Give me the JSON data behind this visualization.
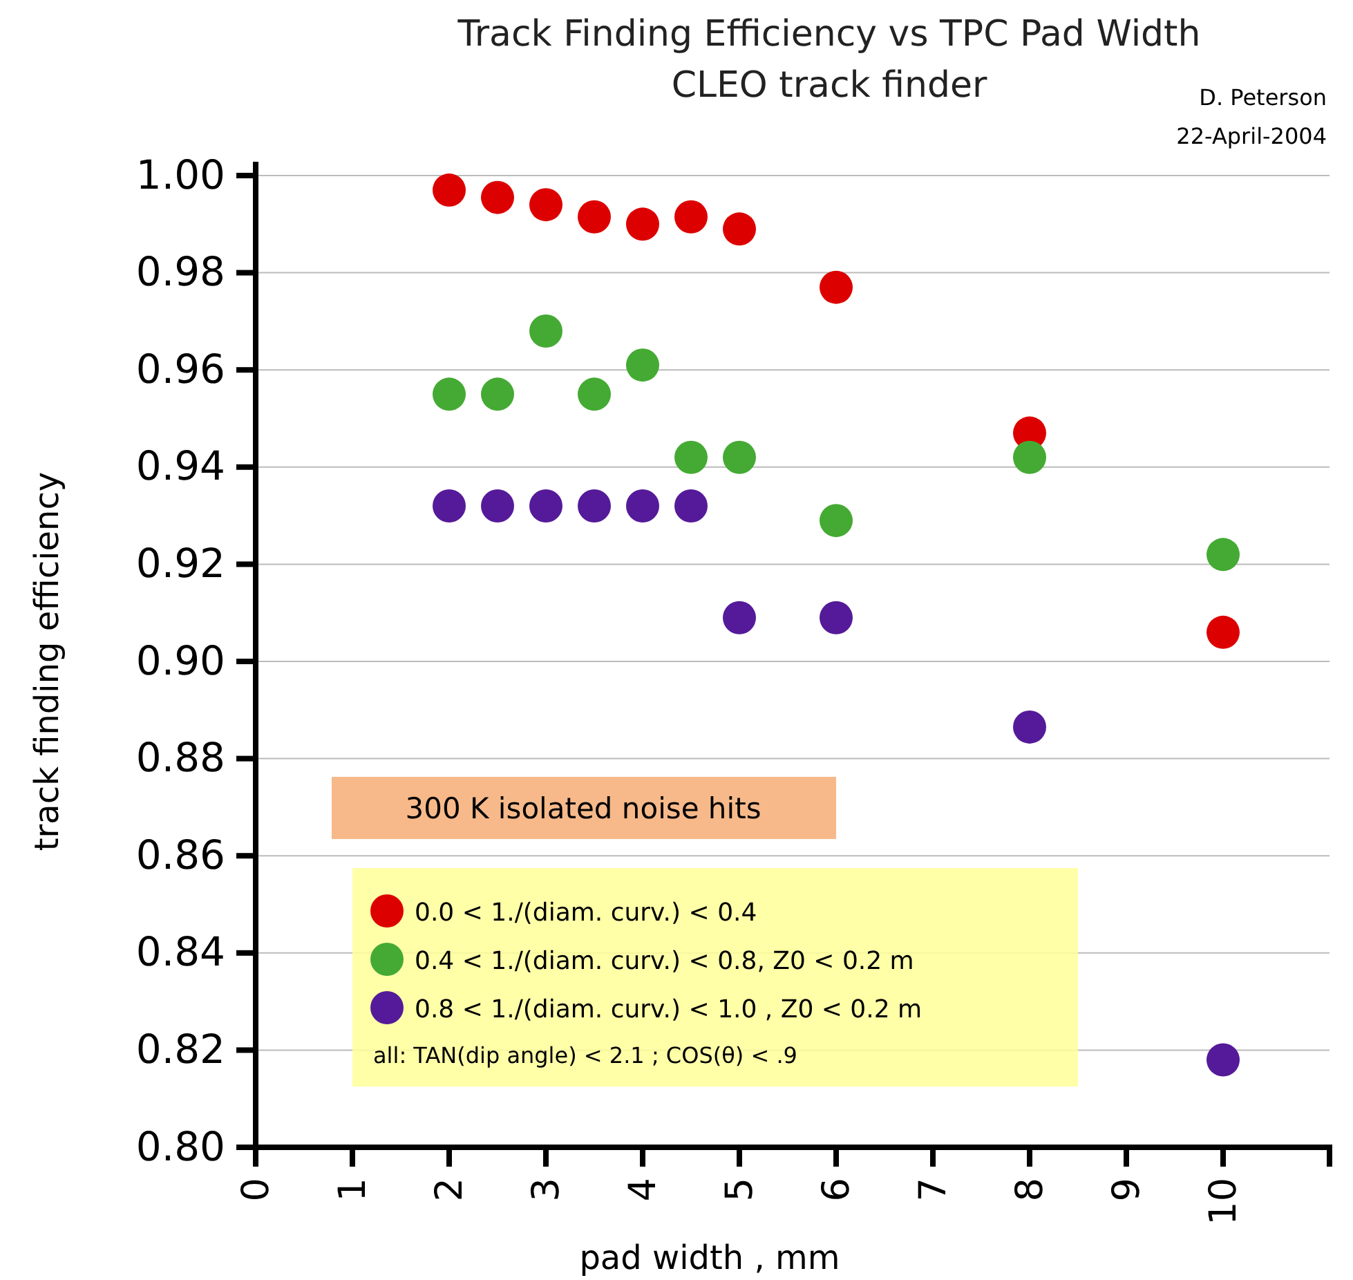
{
  "chart_data": {
    "type": "scatter",
    "title": "Track Finding Efficiency vs TPC Pad Width",
    "subtitle": "CLEO track finder",
    "xlabel": "pad width , mm",
    "ylabel": "track finding efficiency",
    "annotations": [
      "D. Peterson",
      "22-April-2004",
      "300 K isolated noise hits",
      "all:   TAN(dip angle) < 2.1 ; COS(θ) < .9"
    ],
    "xlim": [
      0,
      11.1
    ],
    "xticks": [
      0,
      1,
      2,
      3,
      4,
      5,
      6,
      7,
      8,
      9,
      10
    ],
    "ylim": [
      0.8,
      1.0
    ],
    "yticks": [
      {
        "value": 0.8,
        "label": "0.80"
      },
      {
        "value": 0.82,
        "label": "0.82"
      },
      {
        "value": 0.84,
        "label": "0.84"
      },
      {
        "value": 0.86,
        "label": "0.86"
      },
      {
        "value": 0.88,
        "label": "0.88"
      },
      {
        "value": 0.9,
        "label": "0.90"
      },
      {
        "value": 0.92,
        "label": "0.92"
      },
      {
        "value": 0.94,
        "label": "0.94"
      },
      {
        "value": 0.96,
        "label": "0.96"
      },
      {
        "value": 0.98,
        "label": "0.98"
      },
      {
        "value": 1.0,
        "label": "1.00"
      }
    ],
    "grid": "y",
    "legend": "bottom left",
    "marker": "circle",
    "series": [
      {
        "name": "0.0 < 1./(diam. curv.) < 0.4",
        "color": "#dd0000",
        "x": [
          2,
          2.5,
          3,
          3.5,
          4,
          4.5,
          5,
          6,
          8,
          10
        ],
        "values": [
          0.997,
          0.9955,
          0.994,
          0.9915,
          0.99,
          0.9915,
          0.989,
          0.977,
          0.947,
          0.906
        ]
      },
      {
        "name": "0.4 < 1./(diam. curv.) < 0.8,  Z0 < 0.2 m",
        "color": "#44aa33",
        "x": [
          2,
          2.5,
          3,
          3.5,
          4,
          4.5,
          5,
          6,
          8,
          10
        ],
        "values": [
          0.955,
          0.955,
          0.968,
          0.955,
          0.961,
          0.942,
          0.942,
          0.929,
          0.942,
          0.922
        ]
      },
      {
        "name": "0.8 < 1./(diam. curv.) < 1.0 , Z0 < 0.2 m",
        "color": "#551a99",
        "x": [
          2,
          2.5,
          3,
          3.5,
          4,
          4.5,
          5,
          6,
          8,
          10
        ],
        "values": [
          0.932,
          0.932,
          0.932,
          0.932,
          0.932,
          0.932,
          0.909,
          0.909,
          0.8865,
          0.818
        ]
      }
    ]
  }
}
